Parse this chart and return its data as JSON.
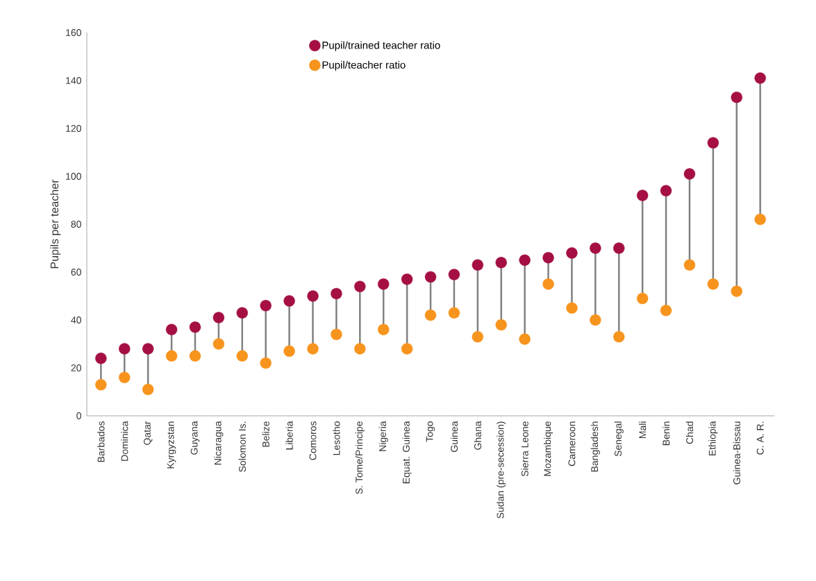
{
  "chart_data": {
    "type": "scatter",
    "ylabel": "Pupils per teacher",
    "categories": [
      "Barbados",
      "Dominica",
      "Qatar",
      "Kyrgyzstan",
      "Guyana",
      "Nicaragua",
      "Solomon Is.",
      "Belize",
      "Liberia",
      "Comoros",
      "Lesotho",
      "S. Tome/Principe",
      "Nigeria",
      "Equat. Guinea",
      "Togo",
      "Guinea",
      "Ghana",
      "Sudan (pre-secession)",
      "Sierra Leone",
      "Mozambique",
      "Cameroon",
      "Bangladesh",
      "Senegal",
      "Mali",
      "Benin",
      "Chad",
      "Ethiopia",
      "Guinea-Bissau",
      "C. A. R."
    ],
    "series": [
      {
        "name": "Pupil/trained teacher ratio",
        "color": "#a50f43",
        "values": [
          24,
          28,
          28,
          36,
          37,
          41,
          43,
          46,
          48,
          50,
          51,
          54,
          55,
          57,
          58,
          59,
          63,
          64,
          65,
          66,
          68,
          70,
          70,
          92,
          94,
          101,
          114,
          133,
          141
        ]
      },
      {
        "name": "Pupil/teacher ratio",
        "color": "#f7941d",
        "values": [
          13,
          16,
          11,
          25,
          25,
          30,
          25,
          22,
          27,
          28,
          34,
          28,
          36,
          28,
          42,
          43,
          33,
          38,
          32,
          55,
          45,
          40,
          33,
          49,
          44,
          63,
          55,
          52,
          82
        ]
      }
    ],
    "ylim": [
      0,
      160
    ],
    "yticks": [
      0,
      20,
      40,
      60,
      80,
      100,
      120,
      140,
      160
    ],
    "marker": "circle",
    "legend": "top"
  }
}
